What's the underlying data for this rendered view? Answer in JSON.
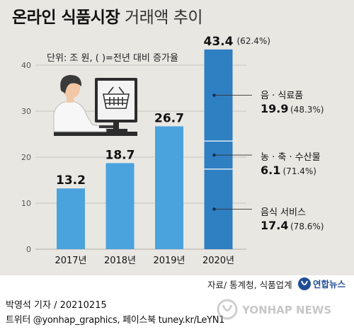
{
  "header": {
    "title_bold": "온라인 식품시장",
    "title_light": "거래액 추이",
    "unit_note": "단위: 조 원, ( )=전년 대비 증가율"
  },
  "chart_data": {
    "type": "bar",
    "categories": [
      "2017년",
      "2018년",
      "2019년",
      "2020년"
    ],
    "values": [
      13.2,
      18.7,
      26.7,
      43.4
    ],
    "value_labels": [
      "13.2",
      "18.7",
      "26.7",
      "43.4"
    ],
    "growth_labels": [
      "",
      "",
      "",
      "(62.4%)"
    ],
    "yticks": [
      0,
      10,
      20,
      30,
      40
    ],
    "ylim": [
      0,
      45
    ],
    "grid": true,
    "bar_color": "#4aa3dd",
    "highlight_color": "#2f7fc3",
    "breakdown_2020": [
      {
        "name": "음식 서비스",
        "value": 17.4,
        "value_label": "17.4",
        "growth": "(78.6%)"
      },
      {
        "name": "농 · 축 · 수산물",
        "value": 6.1,
        "value_label": "6.1",
        "growth": "(71.4%)"
      },
      {
        "name": "음 · 식료품",
        "value": 19.9,
        "value_label": "19.9",
        "growth": "(48.3%)"
      }
    ]
  },
  "footer": {
    "source": "자료/ 통계청, 식품업계",
    "logo_text": "연합뉴스",
    "credit_line1": "박영석 기자 /  20210215",
    "credit_line2": "트위터 @yonhap_graphics, 페이스북 tuney.kr/LeYN1",
    "watermark_text": "YONHAP NEWS"
  }
}
